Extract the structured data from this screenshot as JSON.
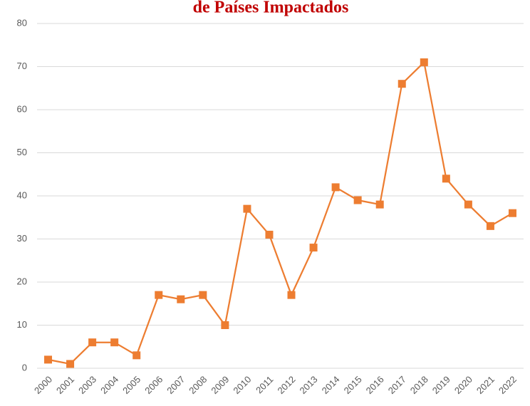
{
  "chart_data": {
    "type": "line",
    "title": "de Países Impactados",
    "categories": [
      "2000",
      "2001",
      "2003",
      "2004",
      "2005",
      "2006",
      "2007",
      "2008",
      "2009",
      "2010",
      "2011",
      "2012",
      "2013",
      "2014",
      "2015",
      "2016",
      "2017",
      "2018",
      "2019",
      "2020",
      "2021",
      "2022"
    ],
    "series": [
      {
        "name": null,
        "color": "#ed7d31",
        "values": [
          2,
          1,
          6,
          6,
          3,
          17,
          16,
          17,
          10,
          37,
          31,
          17,
          28,
          42,
          39,
          38,
          66,
          71,
          44,
          38,
          33,
          36
        ]
      }
    ],
    "ylim": [
      0,
      80
    ],
    "yticks": [
      0,
      10,
      20,
      30,
      40,
      50,
      60,
      70,
      80
    ],
    "grid": true
  }
}
